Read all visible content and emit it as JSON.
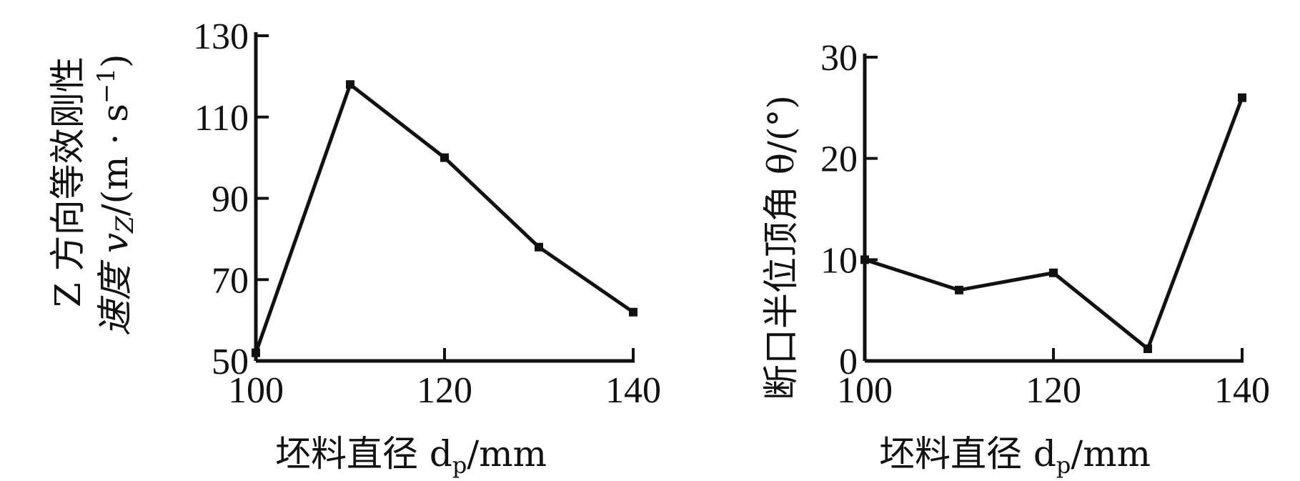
{
  "chart_data": [
    {
      "type": "line",
      "title": "",
      "xlabel": "坯料直径 d",
      "xlabel_sub": "p",
      "xlabel_unit": "/mm",
      "ylabel_line1": "Z 方向等效刚性",
      "ylabel_line2": "速度 v",
      "ylabel_line2_sub": "Z",
      "ylabel_line2_unit": "/(m · s",
      "ylabel_line2_sup": "−1",
      "ylabel_line2_close": ")",
      "xlim": [
        100,
        140
      ],
      "ylim": [
        50,
        130
      ],
      "x_ticks": [
        100,
        120,
        140
      ],
      "y_ticks": [
        50,
        70,
        90,
        110,
        130
      ],
      "grid": false,
      "series": [
        {
          "x": [
            100,
            110,
            120,
            130,
            140
          ],
          "values": [
            52,
            118,
            100,
            78,
            62
          ]
        }
      ]
    },
    {
      "type": "line",
      "title": "",
      "xlabel": "坯料直径 d",
      "xlabel_sub": "p",
      "xlabel_unit": "/mm",
      "ylabel": "断口半位顶角 θ/(°)",
      "xlim": [
        100,
        140
      ],
      "ylim": [
        0,
        30
      ],
      "x_ticks": [
        100,
        120,
        140
      ],
      "y_ticks": [
        0,
        10,
        20,
        30
      ],
      "grid": false,
      "series": [
        {
          "x": [
            100,
            110,
            120,
            130,
            140
          ],
          "values": [
            10,
            7,
            8.7,
            1.2,
            26
          ]
        }
      ]
    }
  ]
}
